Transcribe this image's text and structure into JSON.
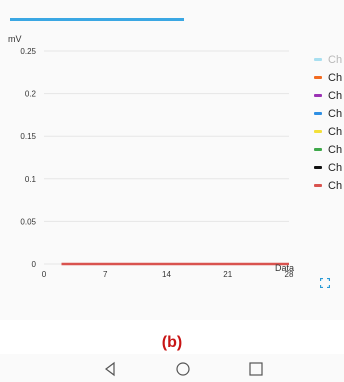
{
  "chart_data": {
    "type": "line",
    "ylabel": "mV",
    "xlabel": "Data",
    "xlim": [
      0,
      28
    ],
    "ylim": [
      0,
      0.25
    ],
    "x_ticks": [
      "0",
      "7",
      "14",
      "21",
      "28"
    ],
    "y_ticks": [
      "0",
      "0.05",
      "0.1",
      "0.15",
      "0.2",
      "0.25"
    ],
    "grid": true,
    "legend_position": "right",
    "series": [
      {
        "name": "Ch",
        "color": "#a8dff0",
        "x": [],
        "y": []
      },
      {
        "name": "Ch",
        "color": "#f26b21",
        "x": [],
        "y": []
      },
      {
        "name": "Ch",
        "color": "#9b32b4",
        "x": [],
        "y": []
      },
      {
        "name": "Ch",
        "color": "#2f8fe3",
        "x": [],
        "y": []
      },
      {
        "name": "Ch",
        "color": "#f3e03a",
        "x": [],
        "y": []
      },
      {
        "name": "Ch",
        "color": "#3ea84a",
        "x": [],
        "y": []
      },
      {
        "name": "Ch",
        "color": "#111111",
        "x": [],
        "y": []
      },
      {
        "name": "Ch",
        "color": "#d9534f",
        "x": [
          2,
          28
        ],
        "y": [
          0,
          0
        ]
      }
    ]
  },
  "progress": {
    "fraction": 0.54,
    "color": "#3aa7e3"
  },
  "expand_icon": "fullscreen-icon",
  "caption": "(b)",
  "nav": {
    "back": "back-icon",
    "home": "home-icon",
    "recents": "recents-icon"
  }
}
